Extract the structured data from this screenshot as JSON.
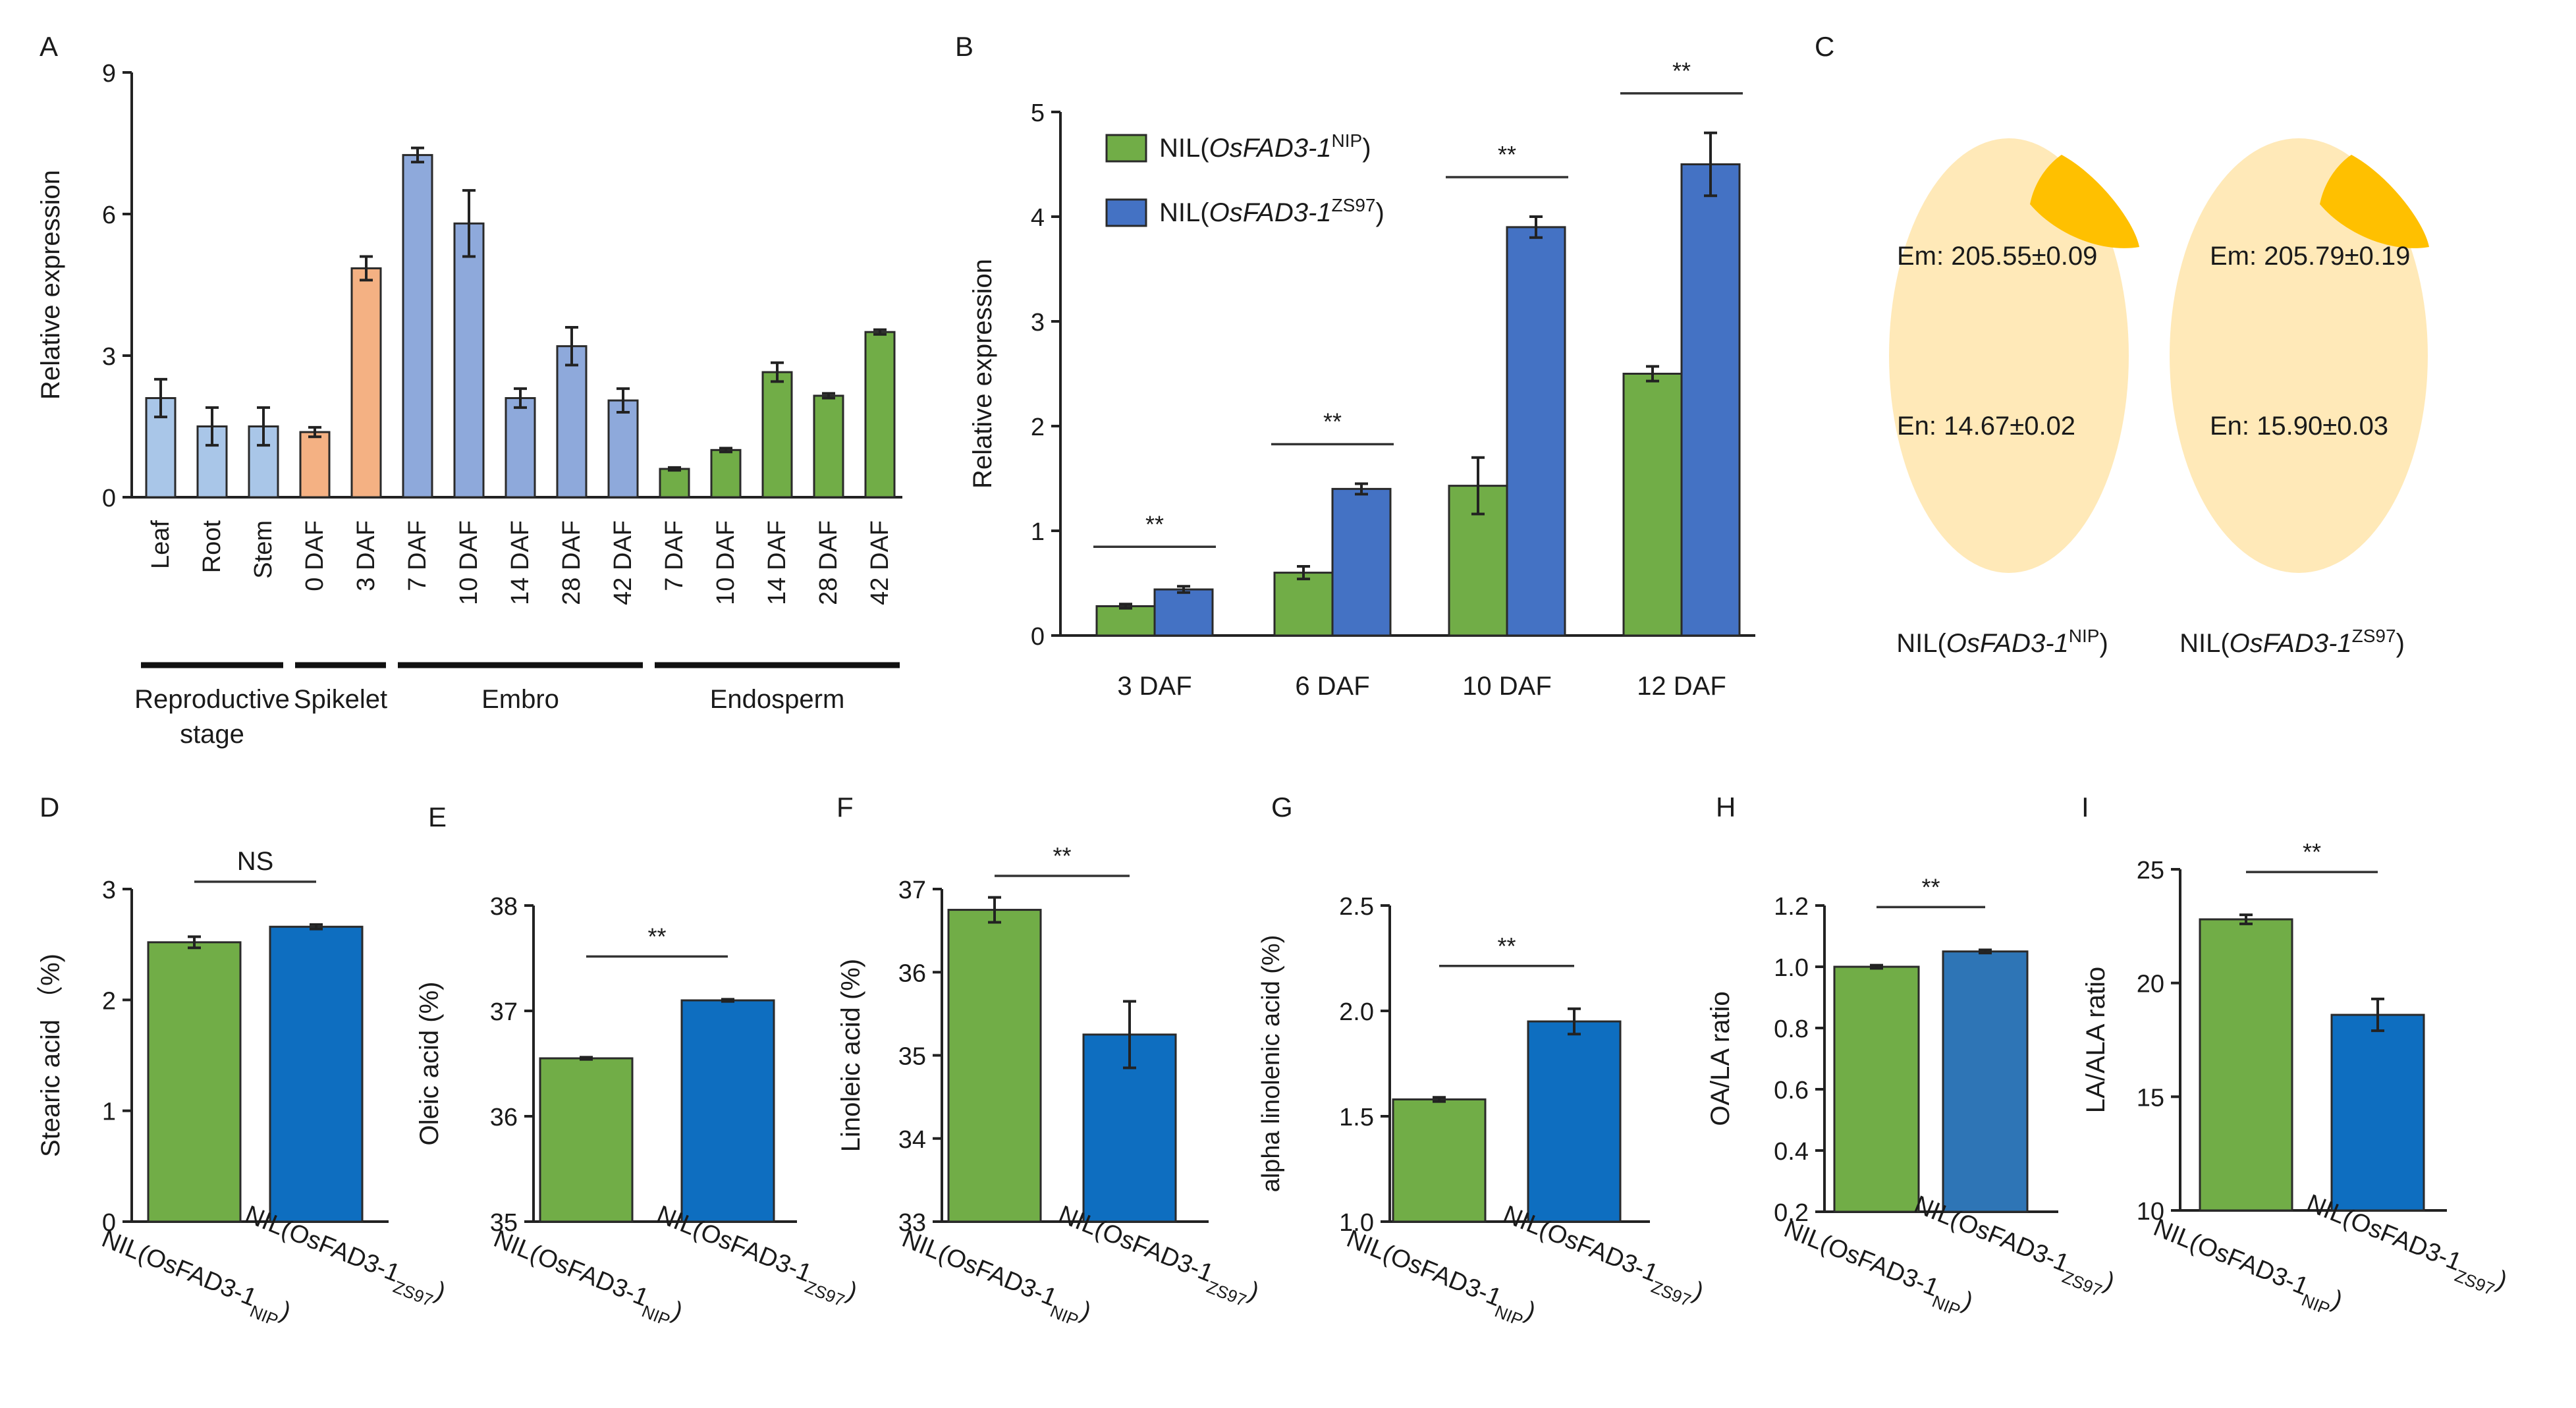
{
  "colors": {
    "green": "#71AD47",
    "blue": "#0E6EC0",
    "blue_b": "#4472C4",
    "blue_h": "#2E75B6",
    "light_blue": "#A9C6E8",
    "peri": "#8EA9DB",
    "orange": "#F4B183",
    "seed_fill": "#FFE9B8",
    "embryo": "#FFC000"
  },
  "chart_data": [
    {
      "panel": "A",
      "type": "bar",
      "ylabel": "Relative expression",
      "ylim": [
        0,
        9
      ],
      "yticks": [
        "0",
        "3",
        "6",
        "9"
      ],
      "categories": [
        "Leaf",
        "Root",
        "Stem",
        "0 DAF",
        "3 DAF",
        "7 DAF",
        "10 DAF",
        "14 DAF",
        "28 DAF",
        "42 DAF",
        "7 DAF",
        "10 DAF",
        "14 DAF",
        "28 DAF",
        "42 DAF"
      ],
      "values": [
        2.1,
        1.5,
        1.5,
        1.38,
        4.85,
        7.25,
        5.8,
        2.1,
        3.2,
        2.05,
        0.6,
        1.0,
        2.65,
        2.15,
        3.5
      ],
      "errors": [
        0.4,
        0.4,
        0.4,
        0.1,
        0.25,
        0.15,
        0.7,
        0.2,
        0.4,
        0.25,
        0.03,
        0.04,
        0.2,
        0.05,
        0.05
      ],
      "bar_colors": [
        "light_blue",
        "light_blue",
        "light_blue",
        "orange",
        "orange",
        "peri",
        "peri",
        "peri",
        "peri",
        "peri",
        "green",
        "green",
        "green",
        "green",
        "green"
      ],
      "groups": [
        {
          "label": "Reproductive",
          "label2": "stage",
          "start": 0,
          "end": 2
        },
        {
          "label": "Spikelet",
          "label2": "",
          "start": 3,
          "end": 4
        },
        {
          "label": "Embro",
          "label2": "",
          "start": 5,
          "end": 9
        },
        {
          "label": "Endosperm",
          "label2": "",
          "start": 10,
          "end": 14
        }
      ]
    },
    {
      "panel": "B",
      "type": "bar",
      "ylabel": "Relative expression",
      "ylim": [
        0,
        5
      ],
      "yticks": [
        "0",
        "1",
        "2",
        "3",
        "4",
        "5"
      ],
      "categories": [
        "3 DAF",
        "6 DAF",
        "10 DAF",
        "12 DAF"
      ],
      "series": [
        {
          "name": "NIL(OsFAD3-1",
          "italic": "OsFAD3-1",
          "sup": "NIP",
          "color": "green",
          "values": [
            0.28,
            0.6,
            1.43,
            2.5
          ],
          "errors": [
            0.02,
            0.06,
            0.27,
            0.07
          ]
        },
        {
          "name": "NIL(OsFAD3-1",
          "italic": "OsFAD3-1",
          "sup": "ZS97",
          "color": "blue_b",
          "values": [
            0.44,
            1.4,
            3.9,
            4.5
          ],
          "errors": [
            0.03,
            0.05,
            0.1,
            0.3
          ]
        }
      ],
      "significance": [
        "**",
        "**",
        "**",
        "**"
      ]
    },
    {
      "panel": "D",
      "type": "bar",
      "ylabel": "Stearic acid （%)",
      "ylim": [
        0,
        3
      ],
      "yticks": [
        "0",
        "1",
        "2",
        "3"
      ],
      "values": [
        2.52,
        2.66
      ],
      "errors": [
        0.05,
        0.02
      ],
      "colors": [
        "green",
        "blue"
      ],
      "significance": "NS"
    },
    {
      "panel": "E",
      "type": "bar",
      "ylabel": "Oleic acid (%)",
      "ylim": [
        35,
        38
      ],
      "yticks": [
        "35",
        "36",
        "37",
        "38"
      ],
      "values": [
        36.55,
        37.1
      ],
      "errors": [
        0.01,
        0.01
      ],
      "colors": [
        "green",
        "blue"
      ],
      "significance": "**"
    },
    {
      "panel": "F",
      "type": "bar",
      "ylabel": "Linoleic acid (%)",
      "ylim": [
        33,
        37
      ],
      "yticks": [
        "33",
        "34",
        "35",
        "36",
        "37"
      ],
      "values": [
        36.75,
        35.25
      ],
      "errors": [
        0.15,
        0.4
      ],
      "colors": [
        "green",
        "blue"
      ],
      "significance": "**"
    },
    {
      "panel": "G",
      "type": "bar",
      "ylabel": "alpha linolenic acid (%)",
      "ylim": [
        1.0,
        2.5
      ],
      "yticks": [
        "1.0",
        "1.5",
        "2.0",
        "2.5"
      ],
      "values": [
        1.58,
        1.95
      ],
      "errors": [
        0.01,
        0.06
      ],
      "colors": [
        "green",
        "blue"
      ],
      "significance": "**"
    },
    {
      "panel": "H",
      "type": "bar",
      "ylabel": "OA/LA ratio",
      "ylim": [
        0.2,
        1.2
      ],
      "yticks": [
        "0.2",
        "0.4",
        "0.6",
        "0.8",
        "1.0",
        "1.2"
      ],
      "values": [
        1.0,
        1.05
      ],
      "errors": [
        0.005,
        0.005
      ],
      "colors": [
        "green",
        "blue_h"
      ],
      "significance": "**"
    },
    {
      "panel": "I",
      "type": "bar",
      "ylabel": "LA/ALA  ratio",
      "ylim": [
        10,
        25
      ],
      "yticks": [
        "10",
        "15",
        "20",
        "25"
      ],
      "values": [
        22.8,
        18.6
      ],
      "errors": [
        0.2,
        0.7
      ],
      "colors": [
        "green",
        "blue"
      ],
      "significance": "**"
    }
  ],
  "nil_label": {
    "prefix": "NIL(OsFAD3-1",
    "sup1": "NIP",
    "sup2": "ZS97",
    "close": ")"
  },
  "panel_c": {
    "seeds": [
      {
        "em": "Em: 205.55±0.09",
        "en": "En: 14.67±0.02",
        "label_pre": "NIL(",
        "label_it": "OsFAD3-1",
        "label_sup": "NIP",
        "label_post": ")"
      },
      {
        "em": "Em: 205.79±0.19",
        "en": "En: 15.90±0.03",
        "label_pre": "NIL(",
        "label_it": "OsFAD3-1",
        "label_sup": "ZS97",
        "label_post": ")"
      }
    ]
  }
}
